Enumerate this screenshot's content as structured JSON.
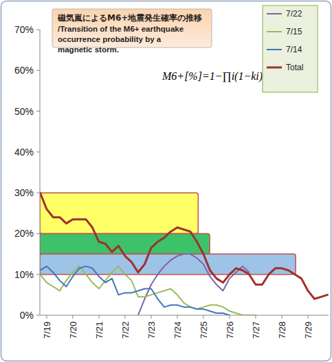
{
  "chart_data": {
    "type": "line",
    "title": "磁気嵐によるM6+地震発生確率の推移",
    "subtitle": "/Transition of the M6+ earthquake occurrence probability by a magnetic storm.",
    "annotations": [
      "M6+[%]=1−∏i(1−ki)"
    ],
    "x": [
      18.75,
      19.0,
      19.25,
      19.5,
      19.75,
      20.0,
      20.25,
      20.5,
      20.75,
      21.0,
      21.25,
      21.5,
      21.75,
      22.0,
      22.25,
      22.5,
      22.75,
      23.0,
      23.25,
      23.5,
      23.75,
      24.0,
      24.25,
      24.5,
      24.75,
      25.0,
      25.25,
      25.5,
      25.75,
      26.0,
      26.25,
      26.5,
      26.75,
      27.0,
      27.25,
      27.5,
      27.75,
      28.0,
      28.25,
      28.5,
      28.75,
      29.0,
      29.25,
      29.5,
      29.75
    ],
    "xlim": [
      18.74,
      29.79
    ],
    "xticks": [
      {
        "value": 19,
        "label": "7/19"
      },
      {
        "value": 20,
        "label": "7/20"
      },
      {
        "value": 21,
        "label": "7/21"
      },
      {
        "value": 22,
        "label": "7/22"
      },
      {
        "value": 23,
        "label": "7/23"
      },
      {
        "value": 24,
        "label": "7/24"
      },
      {
        "value": 25,
        "label": "7/25"
      },
      {
        "value": 26,
        "label": "7/26"
      },
      {
        "value": 27,
        "label": "7/27"
      },
      {
        "value": 28,
        "label": "7/28"
      },
      {
        "value": 29,
        "label": "7/29"
      }
    ],
    "ylim": [
      0,
      70
    ],
    "yticks": [
      {
        "value": 0,
        "label": "0%"
      },
      {
        "value": 10,
        "label": "10%"
      },
      {
        "value": 20,
        "label": "20%"
      },
      {
        "value": 30,
        "label": "30%"
      },
      {
        "value": 40,
        "label": "40%"
      },
      {
        "value": 50,
        "label": "50%"
      },
      {
        "value": 60,
        "label": "60%"
      },
      {
        "value": 70,
        "label": "70%"
      }
    ],
    "grid": false,
    "legend": "top-right",
    "bands": [
      {
        "from": 20,
        "to": 30,
        "x_end": 24.8,
        "color": "#ffff66"
      },
      {
        "from": 15,
        "to": 20,
        "x_end": 25.24,
        "color": "#3cc36a"
      },
      {
        "from": 10,
        "to": 15,
        "x_end": 28.53,
        "color": "#9dc3e6"
      }
    ],
    "series": [
      {
        "name": "7/22",
        "color": "#8064a2",
        "values": [
          null,
          null,
          null,
          null,
          null,
          null,
          null,
          null,
          null,
          null,
          null,
          null,
          null,
          null,
          null,
          0,
          4,
          7.5,
          10,
          12,
          13.5,
          14.5,
          15,
          15,
          14,
          12.5,
          9.5,
          7.5,
          6,
          9,
          10.5,
          12,
          10.5,
          null,
          null,
          null,
          null,
          null,
          null,
          null,
          null,
          null,
          null,
          null,
          null
        ]
      },
      {
        "name": "7/15",
        "color": "#9bbb59",
        "values": [
          10,
          8,
          7,
          6,
          8.5,
          10.5,
          12,
          10,
          8,
          6.5,
          8.5,
          10.5,
          12,
          10,
          8.5,
          4.5,
          4.5,
          5,
          5.5,
          6,
          6.5,
          5,
          3,
          2,
          1.5,
          2,
          2.5,
          2.5,
          2,
          1,
          0.5,
          0,
          0,
          0,
          null,
          null,
          null,
          null,
          null,
          null,
          null,
          null,
          null,
          null,
          null
        ]
      },
      {
        "name": "7/14",
        "color": "#3f77b5",
        "values": [
          11,
          12,
          10.5,
          8.5,
          7,
          9.5,
          11.5,
          12,
          11.5,
          9.5,
          8,
          9,
          5,
          5.5,
          5.5,
          6,
          6.5,
          6.5,
          4,
          2,
          2.5,
          2.5,
          2,
          2,
          1.5,
          1.5,
          1,
          0.5,
          0.5,
          0,
          null,
          null,
          null,
          null,
          null,
          null,
          null,
          null,
          null,
          null,
          null,
          null,
          null,
          null,
          null
        ]
      },
      {
        "name": "Total",
        "color": "#a0302c",
        "values": [
          30,
          26,
          24,
          24,
          22.5,
          23.5,
          23.5,
          23.5,
          21.5,
          18,
          17.5,
          15.5,
          17,
          14.5,
          13,
          10.5,
          12.5,
          16.5,
          18,
          19,
          20.5,
          21.5,
          21,
          20.5,
          18,
          15,
          11,
          9,
          8,
          10,
          11.5,
          11,
          10,
          7.5,
          7.5,
          10,
          11.5,
          11.5,
          11,
          10,
          9,
          6,
          4,
          4.5,
          5
        ]
      }
    ]
  }
}
